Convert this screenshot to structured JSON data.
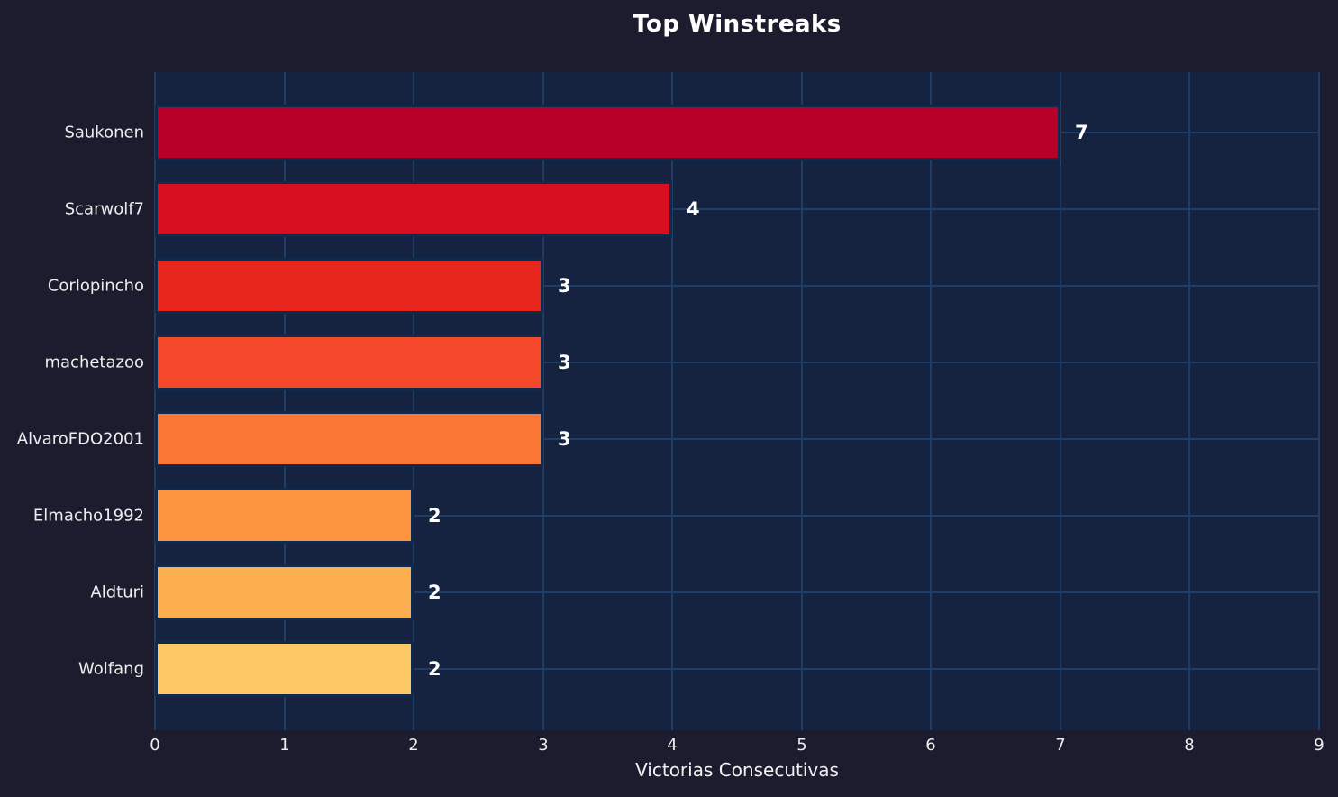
{
  "chart_data": {
    "type": "bar",
    "orientation": "horizontal",
    "title": "Top Winstreaks",
    "xlabel": "Victorias Consecutivas",
    "ylabel": "",
    "categories": [
      "Saukonen",
      "Scarwolf7",
      "Corlopincho",
      "machetazoo",
      "AlvaroFDO2001",
      "Elmacho1992",
      "Aldturi",
      "Wolfang"
    ],
    "values": [
      7,
      4,
      3,
      3,
      3,
      2,
      2,
      2
    ],
    "value_labels": [
      "7",
      "4",
      "3",
      "3",
      "3",
      "2",
      "2",
      "2"
    ],
    "bar_colors": [
      "#b70028",
      "#d70f21",
      "#e7261e",
      "#f4482b",
      "#f97634",
      "#fc9440",
      "#fdae4f",
      "#fdc967"
    ],
    "xlim": [
      0,
      9
    ],
    "xticks": [
      0,
      1,
      2,
      3,
      4,
      5,
      6,
      7,
      8,
      9
    ],
    "grid": true,
    "legend": null,
    "colors": {
      "figure_background": "#1c1c2e",
      "plot_background": "#162340",
      "gridline": "#1f3e66",
      "bar_edge": "#12294e",
      "title_text": "#ffffff",
      "axis_text": "#ededed",
      "value_text": "#ffffff"
    }
  }
}
